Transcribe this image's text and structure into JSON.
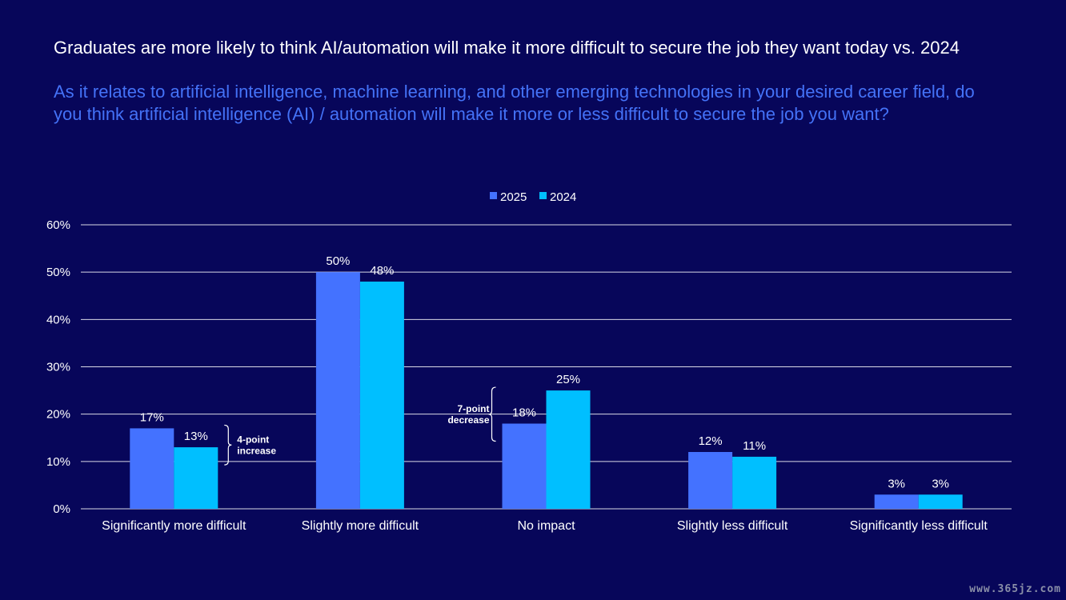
{
  "title": "Graduates are more likely to think AI/automation will make it more difficult to secure the job they want today vs. 2024",
  "subtitle": "As it relates to artificial intelligence, machine learning, and other emerging technologies in your desired career field, do you think artificial intelligence (AI) / automation will make it more or less difficult to secure the job you want?",
  "watermark": "www.365jz.com",
  "chart_data": {
    "type": "bar",
    "categories": [
      "Significantly more difficult",
      "Slightly more difficult",
      "No impact",
      "Slightly less difficult",
      "Significantly less difficult"
    ],
    "series": [
      {
        "name": "2025",
        "values": [
          17,
          50,
          18,
          12,
          3
        ],
        "labels": [
          "17%",
          "50%",
          "18%",
          "12%",
          "3%"
        ],
        "color": "#4472ff"
      },
      {
        "name": "2024",
        "values": [
          13,
          48,
          25,
          11,
          3
        ],
        "labels": [
          "13%",
          "48%",
          "25%",
          "11%",
          "3%"
        ],
        "color": "#00bfff"
      }
    ],
    "ylim": [
      0,
      60
    ],
    "yticks": [
      0,
      10,
      20,
      30,
      40,
      50,
      60
    ],
    "ytick_labels": [
      "0%",
      "10%",
      "20%",
      "30%",
      "40%",
      "50%",
      "60%"
    ],
    "grid": true,
    "legend_position": "top-center",
    "annotations": [
      {
        "category": "Significantly more difficult",
        "side": "right",
        "lines": [
          "4-point",
          "increase"
        ]
      },
      {
        "category": "No impact",
        "side": "left",
        "lines": [
          "7-point",
          "decrease"
        ]
      }
    ]
  },
  "colors": {
    "background": "#07065a",
    "text": "#ffffff",
    "subtitle": "#4472f7",
    "grid": "#ffffff"
  }
}
